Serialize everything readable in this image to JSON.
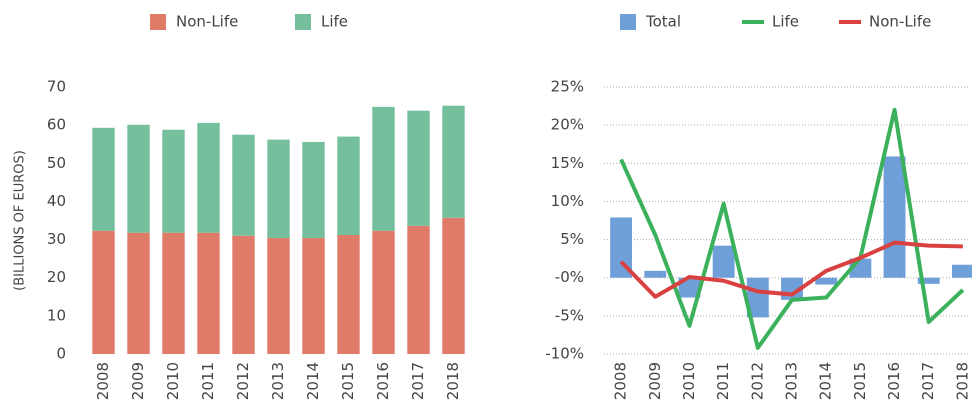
{
  "chart_data": [
    {
      "type": "bar",
      "stacked": true,
      "ylabel": "(BILLIONS OF EUROS)",
      "categories": [
        "2008",
        "2009",
        "2010",
        "2011",
        "2012",
        "2013",
        "2014",
        "2015",
        "2016",
        "2017",
        "2018"
      ],
      "series": [
        {
          "name": "Non-Life",
          "color": "#e07b6a",
          "values": [
            32.3,
            31.8,
            31.8,
            31.8,
            31.0,
            30.4,
            30.4,
            31.2,
            32.3,
            33.6,
            35.7
          ]
        },
        {
          "name": "Life",
          "color": "#76bf9d",
          "values": [
            27.0,
            28.3,
            27.0,
            28.8,
            26.5,
            25.8,
            25.2,
            25.8,
            32.5,
            30.2,
            29.4
          ]
        }
      ],
      "ylim": [
        0,
        70
      ],
      "yticks": [
        0,
        10,
        20,
        30,
        40,
        50,
        60,
        70
      ],
      "grid": false
    },
    {
      "type": "combo",
      "categories": [
        "2008",
        "2009",
        "2010",
        "2011",
        "2012",
        "2013",
        "2014",
        "2015",
        "2016",
        "2017",
        "2018"
      ],
      "series": [
        {
          "name": "Total",
          "type": "bar",
          "color": "#6f9fd8",
          "values": [
            7.9,
            0.9,
            -2.6,
            4.2,
            -5.2,
            -2.9,
            -0.9,
            2.5,
            15.9,
            -0.8,
            1.7
          ]
        },
        {
          "name": "Life",
          "type": "line",
          "color": "#3cb15b",
          "values": [
            15.5,
            5.6,
            -6.3,
            9.7,
            -9.2,
            -2.9,
            -2.6,
            2.6,
            22.0,
            -5.8,
            -1.6
          ]
        },
        {
          "name": "Non-Life",
          "type": "line",
          "color": "#d94141",
          "values": [
            2.1,
            -2.5,
            0.1,
            -0.4,
            -1.8,
            -2.2,
            0.9,
            2.6,
            4.6,
            4.2,
            4.1
          ]
        }
      ],
      "ylim": [
        -10,
        25
      ],
      "yticks": [
        {
          "value": -10,
          "label": "-10%"
        },
        {
          "value": -5,
          "label": "-5%"
        },
        {
          "value": 0,
          "label": "-0%"
        },
        {
          "value": 5,
          "label": "5%"
        },
        {
          "value": 10,
          "label": "10%"
        },
        {
          "value": 15,
          "label": "15%"
        },
        {
          "value": 20,
          "label": "20%"
        },
        {
          "value": 25,
          "label": "25%"
        }
      ],
      "grid": true
    }
  ]
}
